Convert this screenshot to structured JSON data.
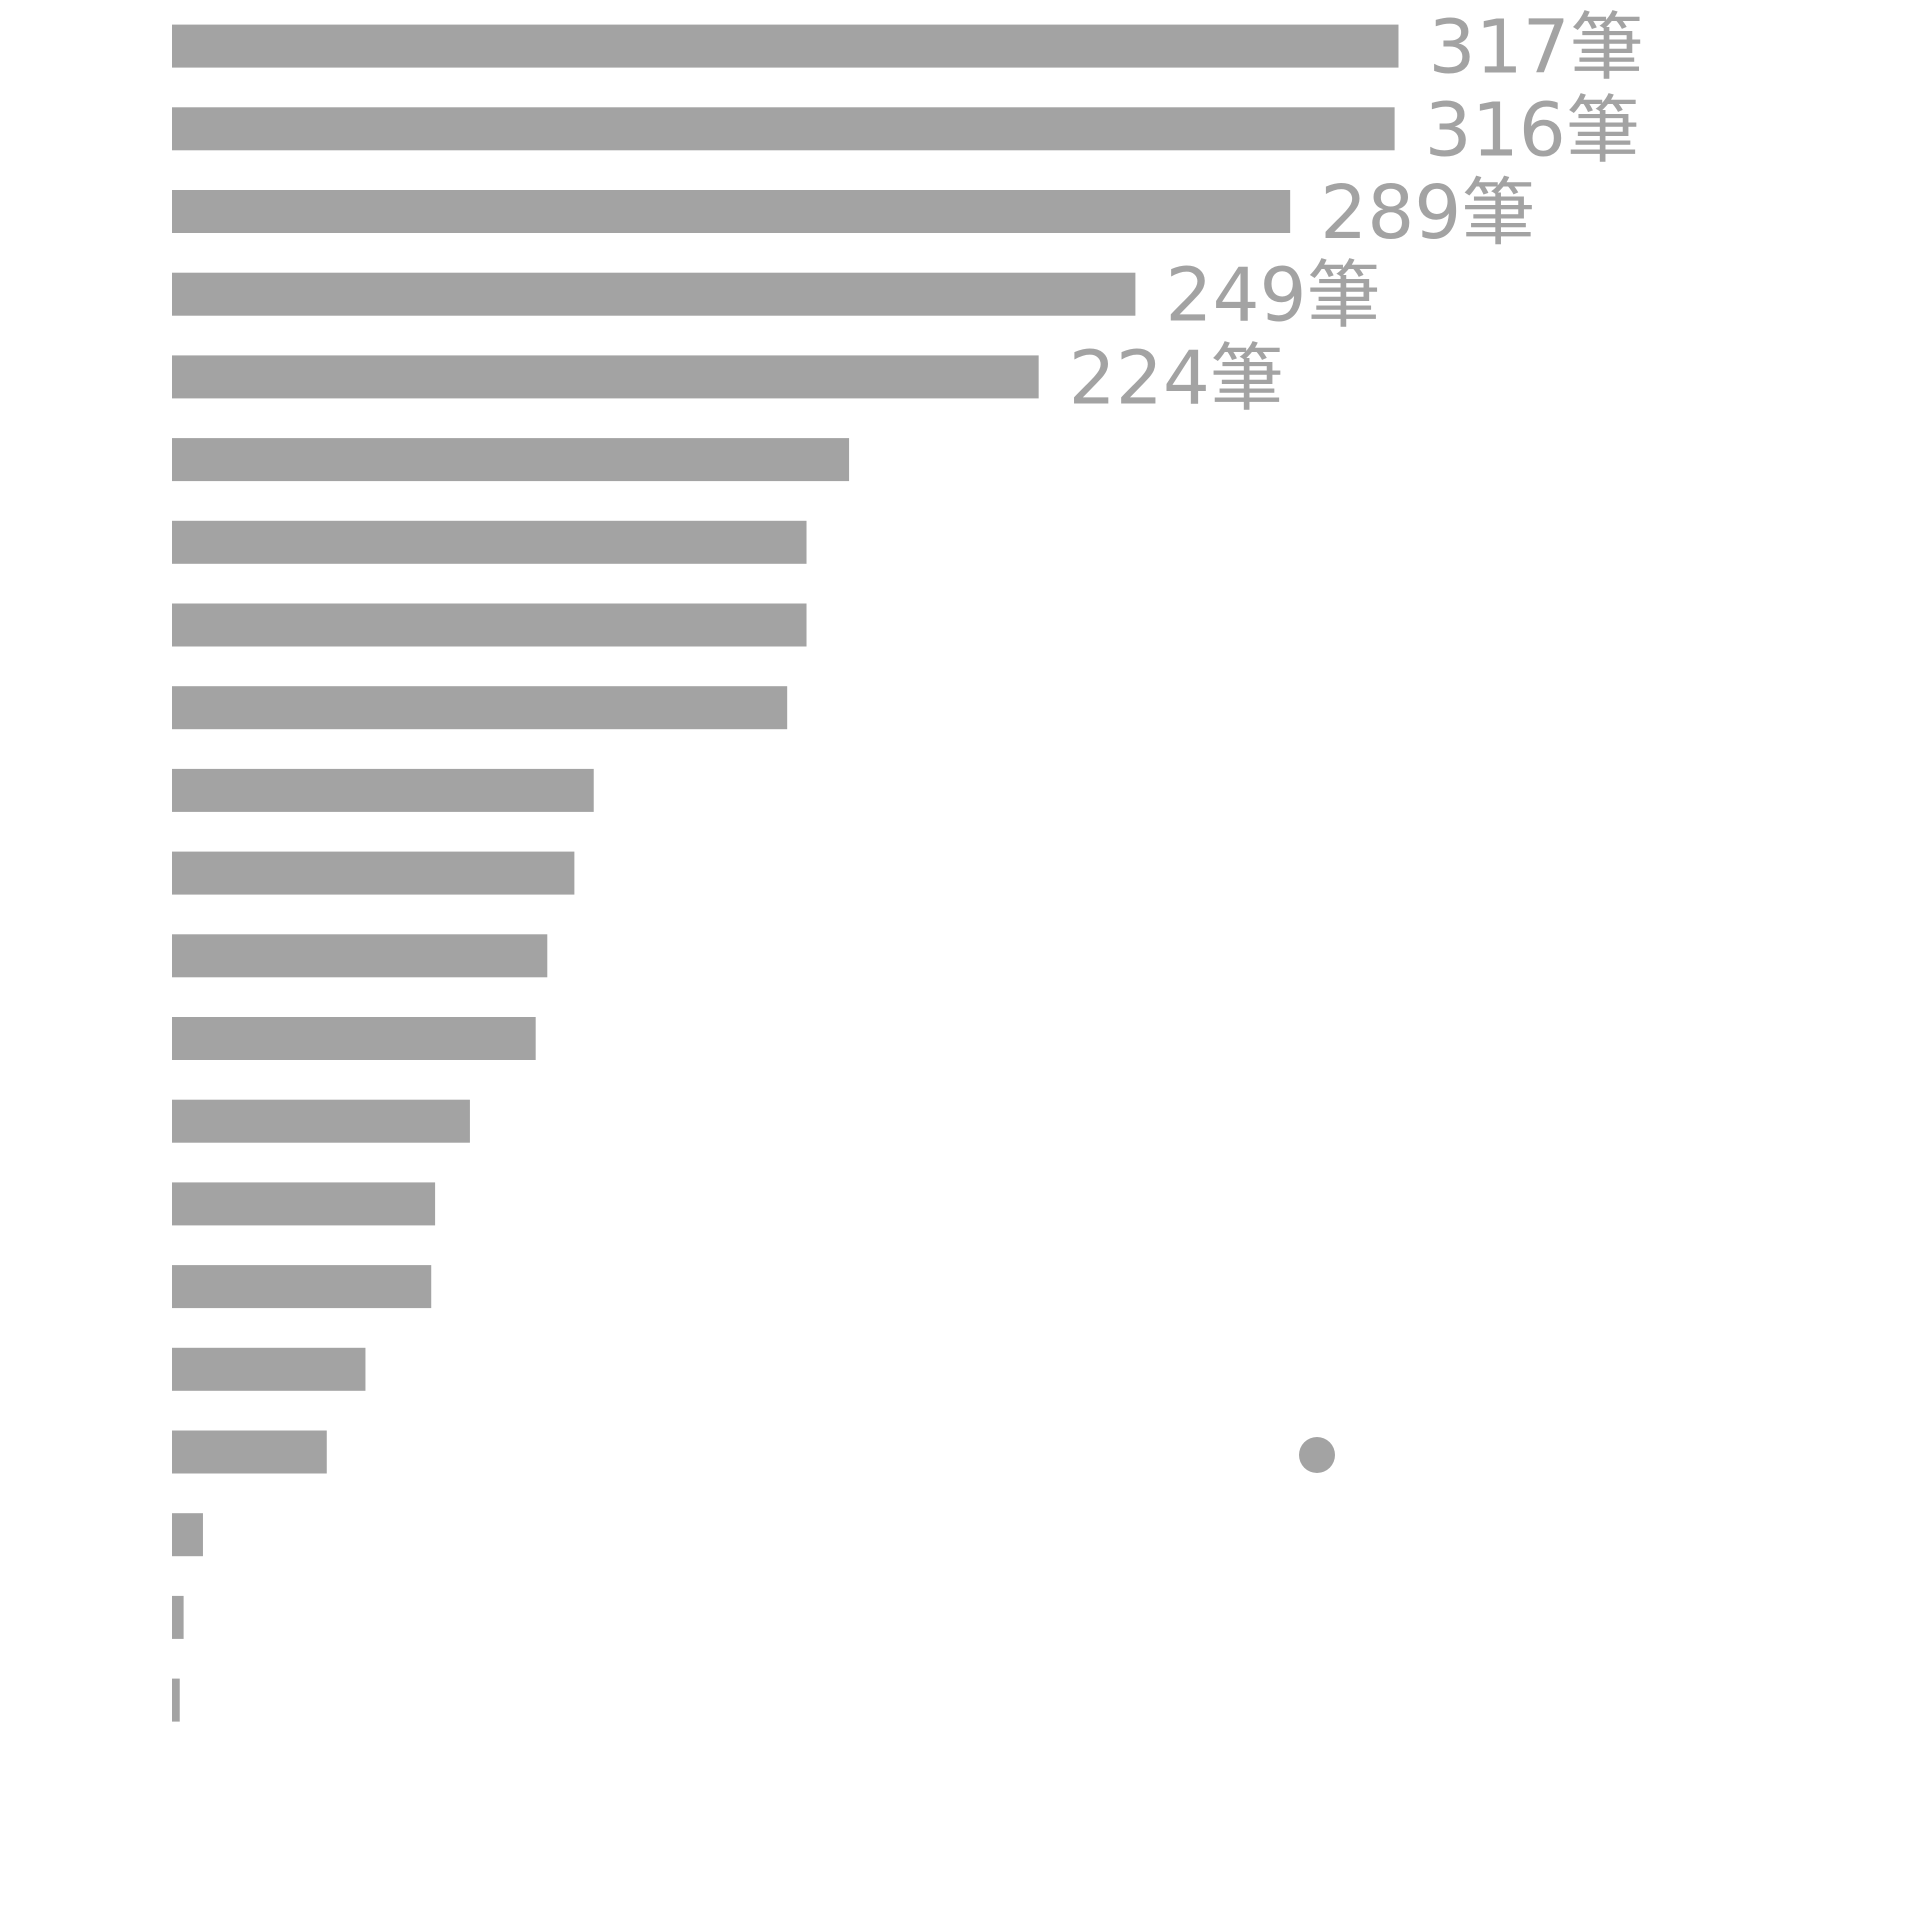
{
  "chart_data": {
    "type": "bar",
    "orientation": "horizontal",
    "color": "#a3a3a3",
    "values": [
      317,
      316,
      289,
      249,
      224,
      175,
      164,
      164,
      159,
      109,
      104,
      97,
      94,
      77,
      68,
      67,
      50,
      40,
      8,
      3,
      2
    ],
    "value_labels": [
      "317筆",
      "316筆",
      "289筆",
      "249筆",
      "224筆",
      null,
      null,
      null,
      null,
      null,
      null,
      null,
      null,
      null,
      null,
      null,
      null,
      null,
      null,
      null,
      null
    ],
    "xlim": [
      0,
      420
    ]
  }
}
